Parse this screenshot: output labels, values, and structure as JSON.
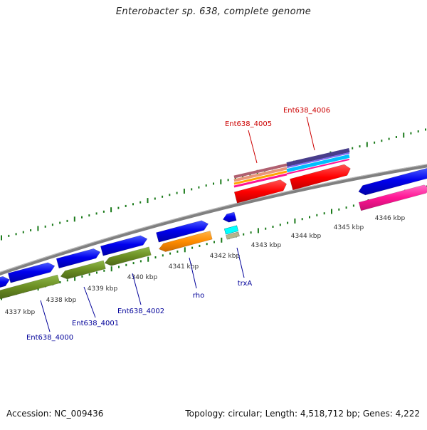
{
  "title": "Enterobacter sp. 638, complete genome",
  "footer": {
    "accession": "Accession: NC_009436",
    "summary": "Topology: circular; Length: 4,518,712 bp; Genes: 4,222"
  },
  "ticks": [
    {
      "label": "4337 kbp"
    },
    {
      "label": "4338 kbp"
    },
    {
      "label": "4339 kbp"
    },
    {
      "label": "4340 kbp"
    },
    {
      "label": "4341 kbp"
    },
    {
      "label": "4342 kbp"
    },
    {
      "label": "4343 kbp"
    },
    {
      "label": "4344 kbp"
    },
    {
      "label": "4345 kbp"
    },
    {
      "label": "4346 kbp"
    }
  ],
  "gene_labels": [
    {
      "name": "Ent638_4000",
      "color": "#000099"
    },
    {
      "name": "Ent638_4001",
      "color": "#000099"
    },
    {
      "name": "Ent638_4002",
      "color": "#000099"
    },
    {
      "name": "rho",
      "color": "#000099"
    },
    {
      "name": "trxA",
      "color": "#000099"
    },
    {
      "name": "Ent638_4005",
      "color": "#cc0000"
    },
    {
      "name": "Ent638_4006",
      "color": "#cc0000"
    }
  ],
  "colors": {
    "backbone": "#808080",
    "forward_gene": "#0000ee",
    "reverse_gene": "#6b8e23",
    "rho_gene": "#ff8c00",
    "tick_green": "#1a7a1a",
    "highlight_red": "#ff0000",
    "highlight_magenta": "#ff1493",
    "highlight_cyan": "#00bfff",
    "highlight_purple": "#483d8b",
    "highlight_salmon": "#e9967a",
    "highlight_orange": "#ffa500"
  }
}
